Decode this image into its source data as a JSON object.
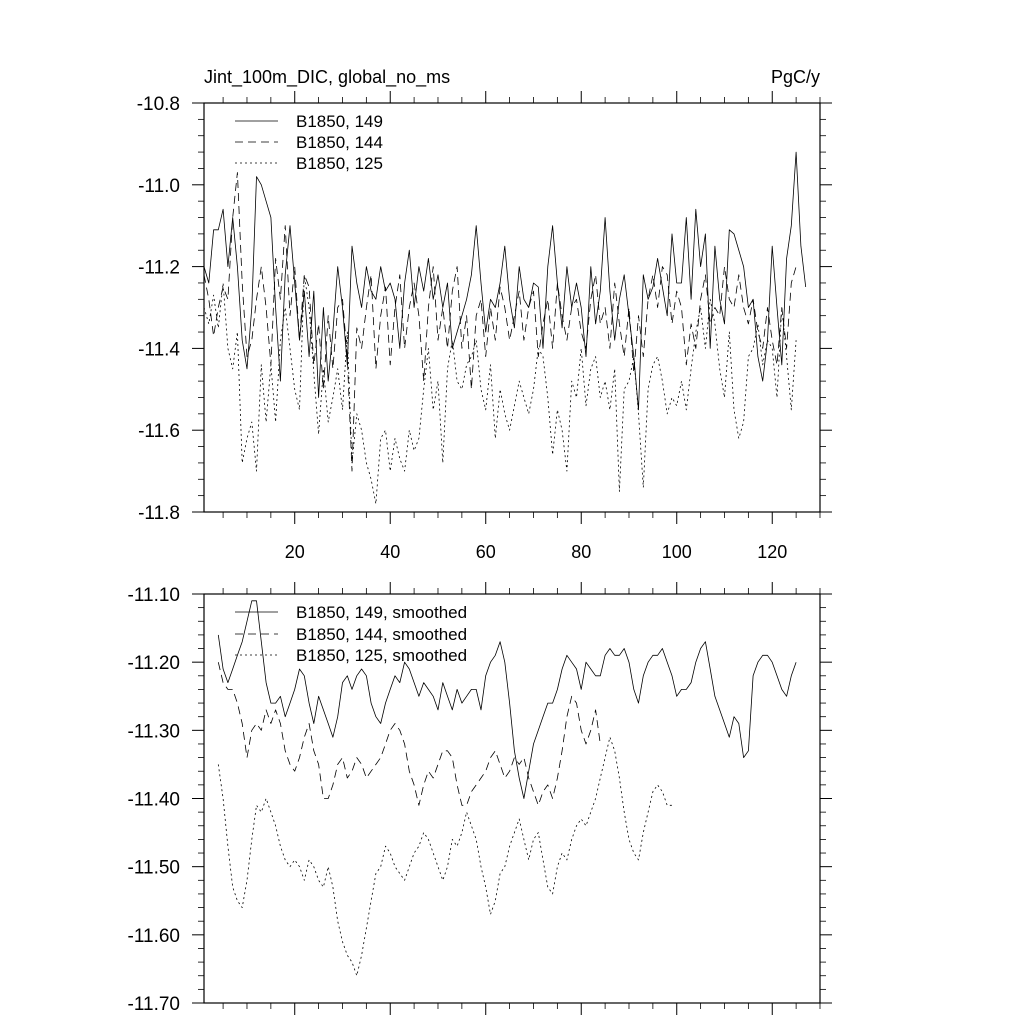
{
  "chart_data": [
    {
      "type": "line",
      "title_left": "Jint_100m_DIC, global_no_ms",
      "title_right": "PgC/y",
      "xlim": [
        1,
        130
      ],
      "ylim": [
        -11.8,
        -10.8
      ],
      "x_ticks": [
        20,
        40,
        60,
        80,
        100,
        120
      ],
      "y_ticks": [
        -11.8,
        -11.6,
        -11.4,
        -11.2,
        -11.0,
        -10.8
      ],
      "y_tick_labels": [
        "-11.8",
        "-11.6",
        "-11.4",
        "-11.2",
        "-11.0",
        "-10.8"
      ],
      "legend_position": "top-left",
      "series": [
        {
          "name": "B1850, 149",
          "style": "solid",
          "x_start": 1,
          "values": [
            -11.2,
            -11.24,
            -11.11,
            -11.11,
            -11.06,
            -11.2,
            -11.08,
            -11.2,
            -11.38,
            -11.45,
            -11.3,
            -10.98,
            -11.0,
            -11.04,
            -11.08,
            -11.3,
            -11.48,
            -11.22,
            -11.1,
            -11.24,
            -11.38,
            -11.26,
            -11.42,
            -11.26,
            -11.52,
            -11.3,
            -11.48,
            -11.36,
            -11.2,
            -11.3,
            -11.44,
            -11.15,
            -11.24,
            -11.3,
            -11.2,
            -11.26,
            -11.28,
            -11.2,
            -11.26,
            -11.24,
            -11.28,
            -11.4,
            -11.24,
            -11.16,
            -11.3,
            -11.2,
            -11.26,
            -11.18,
            -11.28,
            -11.22,
            -11.3,
            -11.24,
            -11.4,
            -11.36,
            -11.32,
            -11.28,
            -11.22,
            -11.1,
            -11.24,
            -11.36,
            -11.28,
            -11.3,
            -11.24,
            -11.15,
            -11.28,
            -11.35,
            -11.2,
            -11.28,
            -11.3,
            -11.24,
            -11.25,
            -11.4,
            -11.2,
            -11.1,
            -11.24,
            -11.35,
            -11.2,
            -11.3,
            -11.24,
            -11.3,
            -11.42,
            -11.2,
            -11.34,
            -11.26,
            -11.08,
            -11.26,
            -11.38,
            -11.28,
            -11.22,
            -11.32,
            -11.42,
            -11.55,
            -11.22,
            -11.28,
            -11.25,
            -11.18,
            -11.25,
            -11.32,
            -11.12,
            -11.24,
            -11.24,
            -11.08,
            -11.28,
            -11.06,
            -11.2,
            -11.12,
            -11.4,
            -11.15,
            -11.28,
            -11.34,
            -11.11,
            -11.12,
            -11.16,
            -11.2,
            -11.3,
            -11.28,
            -11.42,
            -11.48,
            -11.38,
            -11.15,
            -11.3,
            -11.44,
            -11.18,
            -11.1,
            -10.92,
            -11.15,
            -11.25
          ]
        },
        {
          "name": "B1850, 144",
          "style": "dashed",
          "x_start": 1,
          "values": [
            -11.22,
            -11.28,
            -11.37,
            -11.3,
            -11.25,
            -11.28,
            -11.08,
            -10.97,
            -11.24,
            -11.42,
            -11.38,
            -11.28,
            -11.2,
            -11.3,
            -11.44,
            -11.18,
            -11.28,
            -11.1,
            -11.32,
            -11.2,
            -11.38,
            -11.22,
            -11.25,
            -11.44,
            -11.34,
            -11.5,
            -11.32,
            -11.45,
            -11.3,
            -11.28,
            -11.42,
            -11.7,
            -11.35,
            -11.4,
            -11.3,
            -11.22,
            -11.45,
            -11.32,
            -11.25,
            -11.44,
            -11.3,
            -11.22,
            -11.4,
            -11.3,
            -11.24,
            -11.32,
            -11.48,
            -11.3,
            -11.2,
            -11.38,
            -11.3,
            -11.4,
            -11.26,
            -11.2,
            -11.4,
            -11.32,
            -11.5,
            -11.32,
            -11.28,
            -11.42,
            -11.3,
            -11.38,
            -11.25,
            -11.3,
            -11.38,
            -11.32,
            -11.26,
            -11.38,
            -11.3,
            -11.26,
            -11.42,
            -11.34,
            -11.28,
            -11.4,
            -11.24,
            -11.32,
            -11.38,
            -11.3,
            -11.28,
            -11.36,
            -11.4,
            -11.28,
            -11.22,
            -11.34,
            -11.3,
            -11.4,
            -11.24,
            -11.34,
            -11.42,
            -11.3,
            -11.46,
            -11.32,
            -11.42,
            -11.28,
            -11.22,
            -11.3,
            -11.2,
            -11.22,
            -11.34,
            -11.26,
            -11.3,
            -11.44,
            -11.34,
            -11.4,
            -11.28,
            -11.22,
            -11.34,
            -11.3,
            -11.32,
            -11.2,
            -11.28,
            -11.3,
            -11.22,
            -11.3,
            -11.34,
            -11.28,
            -11.36,
            -11.4,
            -11.3,
            -11.38,
            -11.44,
            -11.3,
            -11.4,
            -11.24,
            -11.2
          ]
        },
        {
          "name": "B1850, 125",
          "style": "dotted",
          "x_start": 1,
          "values": [
            -11.3,
            -11.34,
            -11.27,
            -11.35,
            -11.24,
            -11.4,
            -11.45,
            -11.36,
            -11.68,
            -11.62,
            -11.58,
            -11.7,
            -11.44,
            -11.58,
            -11.44,
            -11.58,
            -11.38,
            -11.3,
            -11.4,
            -11.5,
            -11.55,
            -11.22,
            -11.3,
            -11.46,
            -11.61,
            -11.45,
            -11.58,
            -11.52,
            -11.45,
            -11.55,
            -11.36,
            -11.68,
            -11.56,
            -11.6,
            -11.68,
            -11.72,
            -11.78,
            -11.62,
            -11.6,
            -11.7,
            -11.62,
            -11.67,
            -11.7,
            -11.6,
            -11.65,
            -11.62,
            -11.5,
            -11.4,
            -11.55,
            -11.48,
            -11.68,
            -11.45,
            -11.38,
            -11.48,
            -11.5,
            -11.44,
            -11.42,
            -11.38,
            -11.5,
            -11.55,
            -11.44,
            -11.62,
            -11.5,
            -11.56,
            -11.6,
            -11.54,
            -11.48,
            -11.52,
            -11.56,
            -11.5,
            -11.4,
            -11.42,
            -11.52,
            -11.66,
            -11.55,
            -11.6,
            -11.7,
            -11.48,
            -11.52,
            -11.4,
            -11.54,
            -11.45,
            -11.42,
            -11.52,
            -11.48,
            -11.55,
            -11.45,
            -11.75,
            -11.5,
            -11.48,
            -11.42,
            -11.56,
            -11.74,
            -11.5,
            -11.44,
            -11.42,
            -11.48,
            -11.56,
            -11.52,
            -11.54,
            -11.48,
            -11.55,
            -11.45,
            -11.36,
            -11.3,
            -11.4,
            -11.28,
            -11.34,
            -11.45,
            -11.52,
            -11.36,
            -11.55,
            -11.62,
            -11.58,
            -11.42,
            -11.4,
            -11.34,
            -11.44,
            -11.38,
            -11.4,
            -11.52,
            -11.3,
            -11.42,
            -11.55,
            -11.38
          ]
        }
      ]
    },
    {
      "type": "line",
      "xlim": [
        1,
        130
      ],
      "ylim": [
        -11.7,
        -11.1
      ],
      "x_ticks": [
        20,
        40,
        60,
        80,
        100,
        120
      ],
      "y_ticks": [
        -11.7,
        -11.6,
        -11.5,
        -11.4,
        -11.3,
        -11.2,
        -11.1
      ],
      "y_tick_labels": [
        "-11.70",
        "-11.60",
        "-11.50",
        "-11.40",
        "-11.30",
        "-11.20",
        "-11.10"
      ],
      "legend_position": "top-left",
      "series": [
        {
          "name": "B1850, 149, smoothed",
          "style": "solid",
          "x_start": 4,
          "values": [
            -11.16,
            -11.21,
            -11.23,
            -11.21,
            -11.19,
            -11.17,
            -11.14,
            -11.11,
            -11.11,
            -11.17,
            -11.23,
            -11.26,
            -11.26,
            -11.25,
            -11.28,
            -11.26,
            -11.24,
            -11.21,
            -11.22,
            -11.26,
            -11.29,
            -11.25,
            -11.27,
            -11.29,
            -11.31,
            -11.28,
            -11.23,
            -11.22,
            -11.24,
            -11.22,
            -11.21,
            -11.22,
            -11.26,
            -11.28,
            -11.29,
            -11.26,
            -11.24,
            -11.22,
            -11.23,
            -11.2,
            -11.21,
            -11.23,
            -11.25,
            -11.23,
            -11.24,
            -11.25,
            -11.27,
            -11.23,
            -11.25,
            -11.27,
            -11.24,
            -11.26,
            -11.25,
            -11.24,
            -11.24,
            -11.27,
            -11.22,
            -11.2,
            -11.19,
            -11.17,
            -11.2,
            -11.26,
            -11.33,
            -11.37,
            -11.4,
            -11.36,
            -11.32,
            -11.3,
            -11.28,
            -11.26,
            -11.26,
            -11.24,
            -11.21,
            -11.19,
            -11.2,
            -11.21,
            -11.24,
            -11.2,
            -11.21,
            -11.22,
            -11.22,
            -11.19,
            -11.18,
            -11.19,
            -11.19,
            -11.18,
            -11.2,
            -11.24,
            -11.26,
            -11.22,
            -11.2,
            -11.19,
            -11.19,
            -11.18,
            -11.2,
            -11.22,
            -11.25,
            -11.24,
            -11.24,
            -11.23,
            -11.2,
            -11.18,
            -11.17,
            -11.21,
            -11.25,
            -11.27,
            -11.29,
            -11.31,
            -11.28,
            -11.29,
            -11.34,
            -11.33,
            -11.22,
            -11.2,
            -11.19,
            -11.19,
            -11.2,
            -11.22,
            -11.24,
            -11.25,
            -11.22,
            -11.2
          ]
        },
        {
          "name": "B1850, 144, smoothed",
          "style": "dashed",
          "x_start": 4,
          "values": [
            -11.2,
            -11.23,
            -11.24,
            -11.24,
            -11.26,
            -11.29,
            -11.34,
            -11.3,
            -11.29,
            -11.3,
            -11.27,
            -11.29,
            -11.27,
            -11.29,
            -11.33,
            -11.35,
            -11.36,
            -11.34,
            -11.31,
            -11.29,
            -11.33,
            -11.35,
            -11.4,
            -11.4,
            -11.38,
            -11.35,
            -11.34,
            -11.37,
            -11.36,
            -11.34,
            -11.35,
            -11.37,
            -11.36,
            -11.35,
            -11.34,
            -11.32,
            -11.3,
            -11.29,
            -11.3,
            -11.32,
            -11.36,
            -11.38,
            -11.41,
            -11.38,
            -11.36,
            -11.37,
            -11.35,
            -11.33,
            -11.33,
            -11.34,
            -11.38,
            -11.41,
            -11.41,
            -11.39,
            -11.38,
            -11.37,
            -11.36,
            -11.34,
            -11.33,
            -11.35,
            -11.37,
            -11.36,
            -11.34,
            -11.35,
            -11.34,
            -11.37,
            -11.39,
            -11.41,
            -11.39,
            -11.38,
            -11.4,
            -11.37,
            -11.33,
            -11.28,
            -11.25,
            -11.26,
            -11.3,
            -11.32,
            -11.3,
            -11.27,
            -11.32
          ]
        },
        {
          "name": "B1850, 125, smoothed",
          "style": "dotted",
          "x_start": 4,
          "values": [
            -11.35,
            -11.4,
            -11.47,
            -11.53,
            -11.55,
            -11.56,
            -11.52,
            -11.46,
            -11.41,
            -11.42,
            -11.4,
            -11.42,
            -11.44,
            -11.47,
            -11.49,
            -11.5,
            -11.49,
            -11.5,
            -11.52,
            -11.49,
            -11.5,
            -11.52,
            -11.53,
            -11.5,
            -11.53,
            -11.58,
            -11.61,
            -11.63,
            -11.64,
            -11.66,
            -11.63,
            -11.59,
            -11.55,
            -11.51,
            -11.5,
            -11.47,
            -11.48,
            -11.5,
            -11.51,
            -11.52,
            -11.5,
            -11.48,
            -11.47,
            -11.45,
            -11.46,
            -11.48,
            -11.5,
            -11.52,
            -11.5,
            -11.46,
            -11.47,
            -11.45,
            -11.42,
            -11.44,
            -11.46,
            -11.5,
            -11.53,
            -11.57,
            -11.55,
            -11.51,
            -11.5,
            -11.47,
            -11.45,
            -11.43,
            -11.46,
            -11.49,
            -11.46,
            -11.45,
            -11.49,
            -11.53,
            -11.54,
            -11.5,
            -11.48,
            -11.49,
            -11.46,
            -11.44,
            -11.43,
            -11.44,
            -11.42,
            -11.4,
            -11.37,
            -11.34,
            -11.31,
            -11.33,
            -11.37,
            -11.42,
            -11.46,
            -11.48,
            -11.49,
            -11.45,
            -11.42,
            -11.39,
            -11.38,
            -11.39,
            -11.41,
            -11.41
          ]
        }
      ]
    }
  ]
}
